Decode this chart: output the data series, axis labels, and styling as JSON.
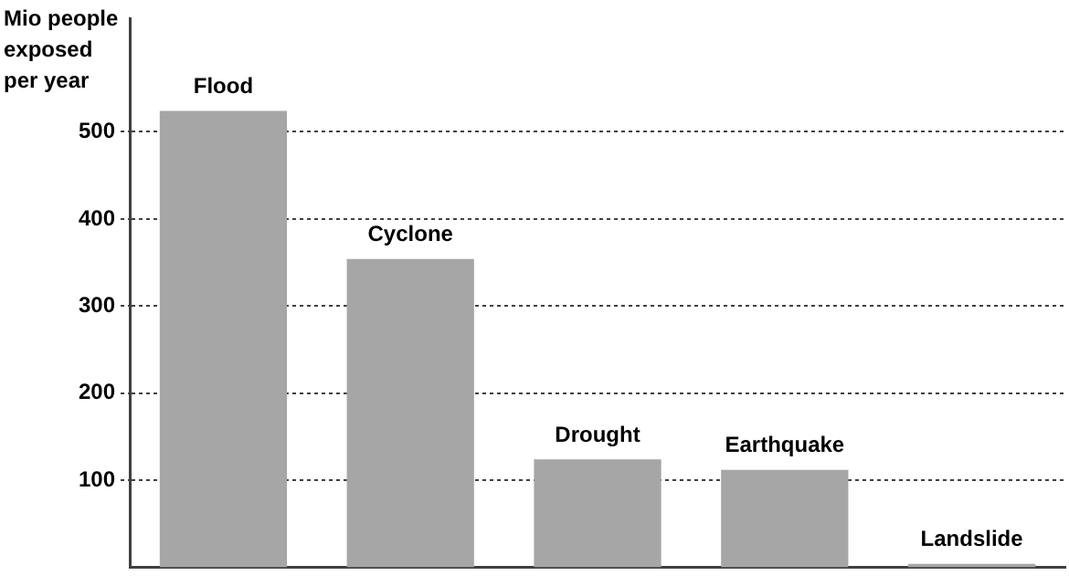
{
  "chart_data": {
    "type": "bar",
    "ylabel": "Mio people exposed per year",
    "categories": [
      "Flood",
      "Cyclone",
      "Drought",
      "Earthquake",
      "Landslide"
    ],
    "values": [
      524,
      354,
      124,
      112,
      4
    ],
    "color": "#a6a6a6",
    "ylim": [
      0,
      630
    ],
    "yticks": [
      100,
      200,
      300,
      400,
      500
    ],
    "grid": "y",
    "legend": false
  }
}
